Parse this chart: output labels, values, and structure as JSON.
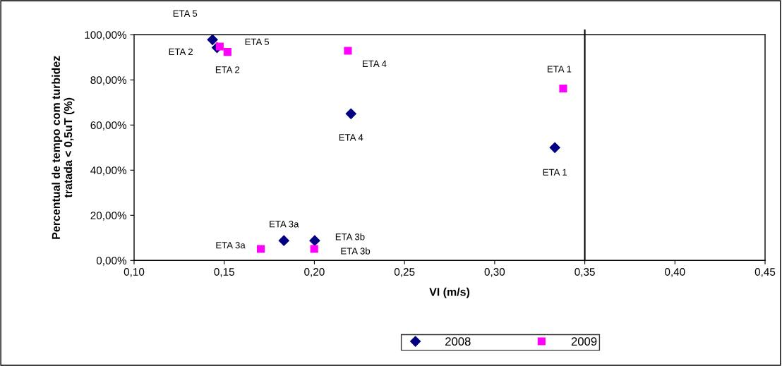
{
  "chart_data": {
    "type": "scatter",
    "xlabel": "VI (m/s)",
    "ylabel": "Percentual de tempo com turbidez\ntratada < 0,5uT (%)",
    "series": [
      {
        "name": "2008",
        "color": "#000080",
        "marker": "diamond",
        "x": [
          0.1435,
          0.146,
          0.2203,
          0.1831,
          0.2002,
          0.3334
        ],
        "values": [
          97.8,
          94.3,
          65.0,
          8.8,
          8.8,
          50.0
        ]
      },
      {
        "name": "2009",
        "color": "#ff00ff",
        "marker": "square",
        "x": [
          0.1475,
          0.1518,
          0.2186,
          0.1703,
          0.1999,
          0.338
        ],
        "values": [
          94.8,
          92.4,
          92.9,
          5.1,
          5.1,
          76.2
        ]
      }
    ],
    "annotations": [
      {
        "text": "ETA 5",
        "x": 0.1435,
        "y": 97.8
      },
      {
        "text": "ETA 2",
        "x": 0.146,
        "y": 94.3
      },
      {
        "text": "ETA 4",
        "x": 0.2203,
        "y": 65.0
      },
      {
        "text": "ETA 3a",
        "x": 0.1831,
        "y": 8.8
      },
      {
        "text": "ETA 3b",
        "x": 0.2002,
        "y": 8.8
      },
      {
        "text": "ETA 1",
        "x": 0.3334,
        "y": 50.0
      },
      {
        "text": "ETA 5",
        "x": 0.1475,
        "y": 94.8
      },
      {
        "text": "ETA 2",
        "x": 0.1518,
        "y": 92.4
      },
      {
        "text": "ETA 4",
        "x": 0.2186,
        "y": 92.9
      },
      {
        "text": "ETA 3a",
        "x": 0.1703,
        "y": 5.1
      },
      {
        "text": "ETA 3b",
        "x": 0.1999,
        "y": 5.1
      },
      {
        "text": "ETA 1",
        "x": 0.338,
        "y": 76.2
      }
    ],
    "ref_lines": [
      {
        "axis": "x",
        "value": 0.35,
        "color": "#000000"
      }
    ],
    "xlim": [
      0.1,
      0.45
    ],
    "xticks": [
      {
        "value": 0.1,
        "label": "0,10"
      },
      {
        "value": 0.15,
        "label": "0,15"
      },
      {
        "value": 0.2,
        "label": "0,20"
      },
      {
        "value": 0.25,
        "label": "0,25"
      },
      {
        "value": 0.3,
        "label": "0,30"
      },
      {
        "value": 0.35,
        "label": "0,35"
      },
      {
        "value": 0.4,
        "label": "0,40"
      },
      {
        "value": 0.45,
        "label": "0,45"
      }
    ],
    "ylim": [
      0,
      100
    ],
    "yticks": [
      {
        "value": 0,
        "label": "0,00%"
      },
      {
        "value": 20,
        "label": "20,00%"
      },
      {
        "value": 40,
        "label": "40,00%"
      },
      {
        "value": 60,
        "label": "60,00%"
      },
      {
        "value": 80,
        "label": "80,00%"
      },
      {
        "value": 100,
        "label": "100,00%"
      }
    ],
    "grid": false,
    "legend": "bottom"
  }
}
